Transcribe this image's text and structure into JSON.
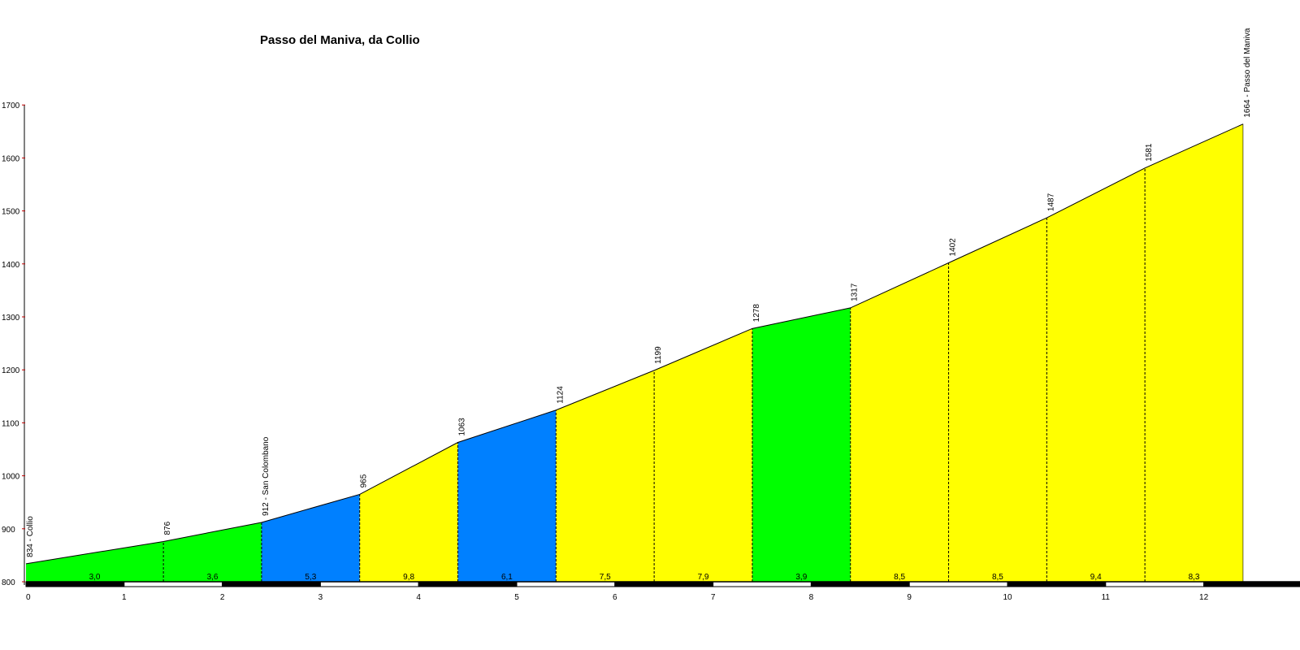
{
  "chart_data": {
    "type": "area",
    "title": "Passo del Maniva, da Collio",
    "xlabel": "",
    "ylabel": "",
    "xlim": [
      0,
      13
    ],
    "ylim": [
      800,
      1700
    ],
    "x_ticks": [
      "0",
      "1",
      "2",
      "3",
      "4",
      "5",
      "6",
      "7",
      "8",
      "9",
      "10",
      "11",
      "12",
      "1"
    ],
    "y_ticks": [
      "800",
      "900",
      "1000",
      "1100",
      "1200",
      "1300",
      "1400",
      "1500",
      "1600",
      "1700"
    ],
    "profile": [
      {
        "km": 0,
        "alt": 834,
        "label": "834 - Collio"
      },
      {
        "km": 1.4,
        "alt": 876,
        "label": "876"
      },
      {
        "km": 2.4,
        "alt": 912,
        "label": "912 - San Colombano"
      },
      {
        "km": 3.4,
        "alt": 965,
        "label": "965"
      },
      {
        "km": 4.4,
        "alt": 1063,
        "label": "1063"
      },
      {
        "km": 5.4,
        "alt": 1124,
        "label": "1124"
      },
      {
        "km": 6.4,
        "alt": 1199,
        "label": "1199"
      },
      {
        "km": 7.4,
        "alt": 1278,
        "label": "1278"
      },
      {
        "km": 8.4,
        "alt": 1317,
        "label": "1317"
      },
      {
        "km": 9.4,
        "alt": 1402,
        "label": "1402"
      },
      {
        "km": 10.4,
        "alt": 1487,
        "label": "1487"
      },
      {
        "km": 11.4,
        "alt": 1581,
        "label": "1581"
      },
      {
        "km": 12.4,
        "alt": 1664,
        "label": "1664 - Passo del Maniva"
      }
    ],
    "segments": [
      {
        "from": 0,
        "to": 1.4,
        "gradient": "3,0",
        "color": "#00ff00"
      },
      {
        "from": 1.4,
        "to": 2.4,
        "gradient": "3,6",
        "color": "#00ff00"
      },
      {
        "from": 2.4,
        "to": 3.4,
        "gradient": "5,3",
        "color": "#0080ff"
      },
      {
        "from": 3.4,
        "to": 4.4,
        "gradient": "9,8",
        "color": "#ffff00"
      },
      {
        "from": 4.4,
        "to": 5.4,
        "gradient": "6,1",
        "color": "#0080ff"
      },
      {
        "from": 5.4,
        "to": 6.4,
        "gradient": "7,5",
        "color": "#ffff00"
      },
      {
        "from": 6.4,
        "to": 7.4,
        "gradient": "7,9",
        "color": "#ffff00"
      },
      {
        "from": 7.4,
        "to": 8.4,
        "gradient": "3,9",
        "color": "#00ff00"
      },
      {
        "from": 8.4,
        "to": 9.4,
        "gradient": "8,5",
        "color": "#ffff00"
      },
      {
        "from": 9.4,
        "to": 10.4,
        "gradient": "8,5",
        "color": "#ffff00"
      },
      {
        "from": 10.4,
        "to": 11.4,
        "gradient": "9,4",
        "color": "#ffff00"
      },
      {
        "from": 11.4,
        "to": 12.4,
        "gradient": "8,3",
        "color": "#ffff00"
      }
    ],
    "colors": {
      "axis": "#000000",
      "y_tick_mark": "#c00000",
      "scale_bar_dark": "#000000",
      "scale_bar_light": "#ffffff"
    }
  }
}
